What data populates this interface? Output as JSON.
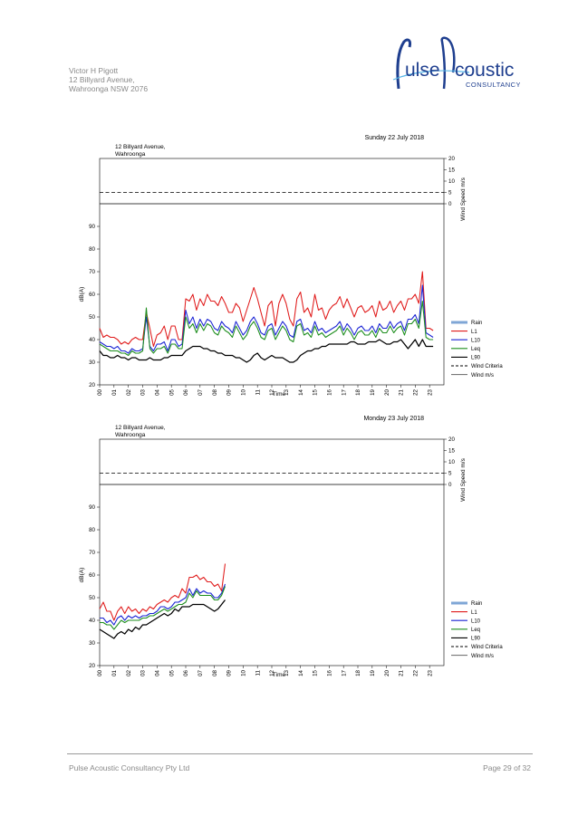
{
  "header": {
    "address_lines": [
      "Victor H Pigott",
      "12 Billyard Avenue,",
      "Wahroonga  NSW  2076"
    ],
    "logo": {
      "part1": "ulse",
      "part2": "coustic",
      "subtitle": "CONSULTANCY",
      "color": "#1f3f8f",
      "accent": "#55b6e8"
    }
  },
  "footer": {
    "company": "Pulse Acoustic Consultancy Pty Ltd",
    "page": "Page 29 of 32"
  },
  "chart_data": [
    {
      "type": "line",
      "title": "Sunday 22 July 2018",
      "subtitle": [
        "12 Billyard Avenue,",
        "Wahroonga"
      ],
      "xlabel": "Time",
      "ylabel": "dB(A)",
      "y2label": "Wind Speed m/s",
      "ylim": [
        20,
        100
      ],
      "yticks": [
        20,
        30,
        40,
        50,
        60,
        70,
        80,
        90
      ],
      "y2lim": [
        0,
        20
      ],
      "y2ticks": [
        0,
        5,
        10,
        15,
        20
      ],
      "xticks": [
        "00",
        "01",
        "02",
        "03",
        "04",
        "05",
        "06",
        "07",
        "08",
        "09",
        "10",
        "11",
        "12",
        "13",
        "14",
        "15",
        "16",
        "17",
        "18",
        "19",
        "20",
        "21",
        "22",
        "23"
      ],
      "wind_criteria": 5,
      "legend": [
        "Rain",
        "L1",
        "L10",
        "Leq",
        "L90",
        "Wind Criteria",
        "Wind m/s"
      ],
      "series": [
        {
          "name": "L1",
          "color": "#e01b1b",
          "values": [
            45,
            41,
            42,
            41,
            41,
            40,
            38,
            39,
            38,
            40,
            41,
            40,
            40,
            52,
            45,
            37,
            42,
            43,
            46,
            40,
            46,
            46,
            40,
            40,
            58,
            57,
            60,
            53,
            58,
            55,
            60,
            57,
            57,
            55,
            59,
            56,
            52,
            52,
            56,
            54,
            48,
            53,
            58,
            63,
            58,
            52,
            46,
            55,
            57,
            46,
            56,
            60,
            56,
            49,
            46,
            58,
            61,
            52,
            54,
            50,
            60,
            53,
            54,
            49,
            53,
            55,
            56,
            59,
            54,
            58,
            54,
            50,
            54,
            55,
            52,
            53,
            55,
            50,
            57,
            53,
            54,
            57,
            52,
            55,
            57,
            53,
            58,
            58,
            60,
            56,
            70,
            45,
            45,
            44
          ]
        },
        {
          "name": "L10",
          "color": "#1a23d4",
          "values": [
            39,
            38,
            37,
            37,
            36,
            37,
            35,
            35,
            34,
            36,
            35,
            35,
            36,
            50,
            37,
            35,
            38,
            38,
            39,
            35,
            40,
            40,
            37,
            38,
            53,
            47,
            50,
            45,
            49,
            46,
            49,
            48,
            45,
            44,
            48,
            46,
            45,
            43,
            48,
            45,
            42,
            44,
            48,
            50,
            47,
            43,
            42,
            46,
            47,
            42,
            45,
            48,
            46,
            42,
            41,
            48,
            49,
            44,
            45,
            43,
            48,
            44,
            45,
            43,
            44,
            45,
            46,
            48,
            44,
            47,
            45,
            42,
            45,
            46,
            44,
            44,
            46,
            43,
            47,
            45,
            45,
            48,
            45,
            47,
            48,
            44,
            49,
            49,
            51,
            47,
            64,
            43,
            42,
            41
          ]
        },
        {
          "name": "Leq",
          "color": "#1e8e1e",
          "values": [
            38,
            37,
            36,
            35,
            35,
            35,
            34,
            34,
            33,
            35,
            34,
            34,
            35,
            54,
            36,
            34,
            36,
            36,
            37,
            34,
            38,
            38,
            36,
            36,
            50,
            45,
            47,
            43,
            47,
            44,
            47,
            46,
            43,
            42,
            46,
            44,
            43,
            41,
            46,
            43,
            40,
            42,
            46,
            48,
            45,
            41,
            40,
            44,
            45,
            40,
            43,
            46,
            44,
            40,
            39,
            46,
            47,
            42,
            43,
            41,
            46,
            42,
            43,
            41,
            42,
            43,
            44,
            46,
            42,
            45,
            43,
            40,
            43,
            44,
            42,
            42,
            44,
            41,
            45,
            43,
            43,
            46,
            43,
            45,
            46,
            42,
            47,
            47,
            49,
            45,
            57,
            41,
            40,
            40
          ]
        },
        {
          "name": "L90",
          "color": "#000000",
          "values": [
            35,
            33,
            33,
            32,
            32,
            33,
            32,
            32,
            31,
            32,
            32,
            31,
            31,
            31,
            32,
            31,
            31,
            31,
            32,
            32,
            33,
            33,
            33,
            33,
            35,
            36,
            37,
            37,
            37,
            36,
            36,
            35,
            35,
            34,
            34,
            33,
            33,
            33,
            32,
            32,
            31,
            30,
            31,
            33,
            34,
            32,
            31,
            32,
            33,
            32,
            32,
            32,
            31,
            30,
            30,
            31,
            33,
            34,
            35,
            35,
            36,
            36,
            37,
            37,
            38,
            38,
            38,
            38,
            38,
            38,
            39,
            39,
            38,
            38,
            38,
            39,
            39,
            39,
            40,
            39,
            38,
            38,
            39,
            39,
            40,
            38,
            36,
            38,
            40,
            37,
            40,
            37,
            37,
            37
          ]
        }
      ]
    },
    {
      "type": "line",
      "title": "Monday 23 July 2018",
      "subtitle": [
        "12 Billyard Avenue,",
        "Wahroonga"
      ],
      "xlabel": "Time",
      "ylabel": "dB(A)",
      "y2label": "Wind Speed m/s",
      "ylim": [
        20,
        100
      ],
      "yticks": [
        20,
        30,
        40,
        50,
        60,
        70,
        80,
        90
      ],
      "y2lim": [
        0,
        20
      ],
      "y2ticks": [
        0,
        5,
        10,
        15,
        20
      ],
      "xticks": [
        "00",
        "01",
        "02",
        "03",
        "04",
        "05",
        "06",
        "07",
        "08",
        "09",
        "10",
        "11",
        "12",
        "13",
        "14",
        "15",
        "16",
        "17",
        "18",
        "19",
        "20",
        "21",
        "22",
        "23"
      ],
      "wind_criteria": 5,
      "legend": [
        "Rain",
        "L1",
        "L10",
        "Leq",
        "L90",
        "Wind Criteria",
        "Wind m/s"
      ],
      "series": [
        {
          "name": "L1",
          "color": "#e01b1b",
          "values": [
            45,
            48,
            44,
            44,
            40,
            44,
            46,
            43,
            46,
            44,
            45,
            43,
            45,
            44,
            46,
            45,
            47,
            48,
            49,
            48,
            50,
            51,
            50,
            54,
            52,
            59,
            59,
            60,
            58,
            59,
            57,
            57,
            55,
            56,
            53,
            65
          ]
        },
        {
          "name": "L10",
          "color": "#1a23d4",
          "values": [
            41,
            41,
            39,
            40,
            38,
            41,
            42,
            40,
            42,
            41,
            42,
            41,
            42,
            42,
            43,
            43,
            44,
            46,
            46,
            45,
            46,
            48,
            48,
            49,
            50,
            54,
            51,
            54,
            52,
            53,
            52,
            52,
            50,
            50,
            52,
            56
          ]
        },
        {
          "name": "Leq",
          "color": "#1e8e1e",
          "values": [
            39,
            39,
            38,
            38,
            36,
            38,
            40,
            39,
            40,
            40,
            40,
            40,
            41,
            41,
            42,
            42,
            43,
            44,
            45,
            44,
            45,
            46,
            47,
            47,
            48,
            52,
            50,
            53,
            51,
            51,
            51,
            51,
            49,
            49,
            51,
            55
          ]
        },
        {
          "name": "L90",
          "color": "#000000",
          "values": [
            36,
            35,
            34,
            33,
            32,
            34,
            35,
            34,
            36,
            35,
            37,
            36,
            38,
            38,
            39,
            40,
            41,
            42,
            43,
            42,
            43,
            45,
            44,
            46,
            46,
            46,
            47,
            47,
            47,
            47,
            46,
            45,
            44,
            45,
            47,
            49
          ]
        }
      ]
    }
  ]
}
